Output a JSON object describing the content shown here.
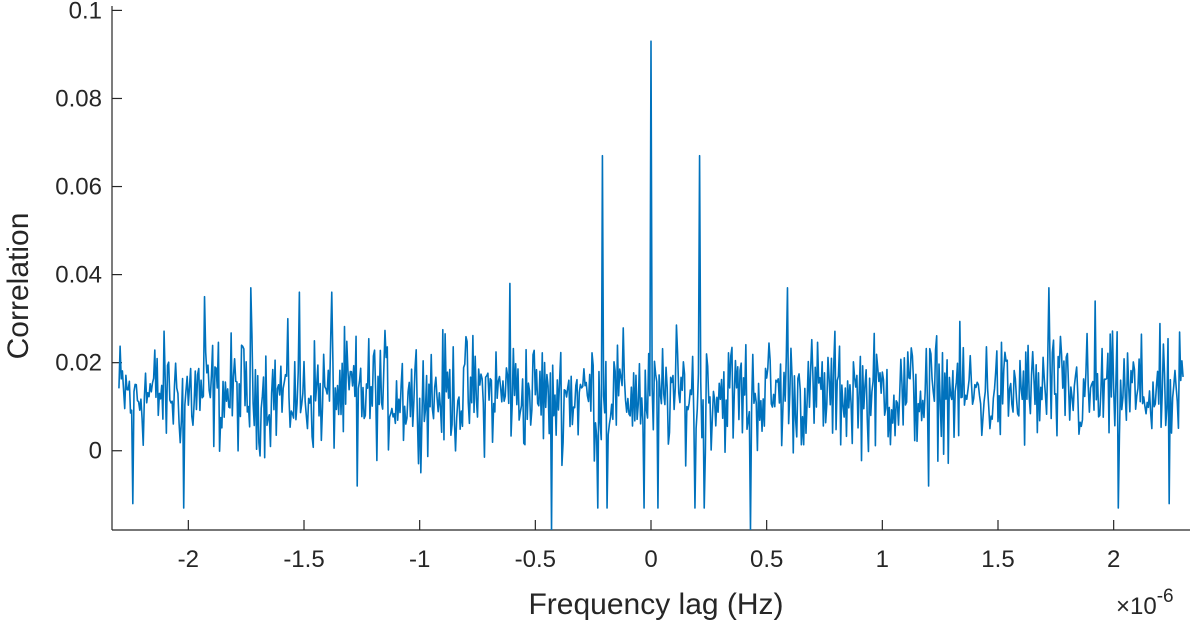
{
  "chart_data": {
    "type": "line",
    "xlabel": "Frequency lag (Hz)",
    "ylabel": "Correlation",
    "x_exponent_label": "×10",
    "x_exponent_power": "-6",
    "xlim": [
      -2.33,
      2.33
    ],
    "ylim": [
      -0.018,
      0.101
    ],
    "x_scale_factor": 1e-06,
    "x_ticks": [
      -2,
      -1.5,
      -1,
      -0.5,
      0,
      0.5,
      1,
      1.5,
      2
    ],
    "x_tick_labels": [
      "-2",
      "-1.5",
      "-1",
      "-0.5",
      "0",
      "0.5",
      "1",
      "1.5",
      "2"
    ],
    "y_ticks": [
      0,
      0.02,
      0.04,
      0.06,
      0.08,
      0.1
    ],
    "y_tick_labels": [
      "0",
      "0.02",
      "0.04",
      "0.06",
      "0.08",
      "0.1"
    ],
    "grid": false,
    "series": [
      {
        "color": "#0072BD",
        "x_range": [
          -2.3,
          2.3
        ],
        "n_points": 921,
        "baseline": 0.013,
        "noise_amplitude": 0.011,
        "peaks": [
          {
            "x": -2.24,
            "y": -0.012
          },
          {
            "x": -2.02,
            "y": -0.013
          },
          {
            "x": -1.93,
            "y": 0.035
          },
          {
            "x": -1.73,
            "y": 0.037
          },
          {
            "x": -1.52,
            "y": 0.036
          },
          {
            "x": -1.38,
            "y": 0.036
          },
          {
            "x": -1.27,
            "y": -0.008
          },
          {
            "x": -0.61,
            "y": 0.038
          },
          {
            "x": -0.43,
            "y": -0.018
          },
          {
            "x": -0.21,
            "y": 0.067
          },
          {
            "x": 0.0,
            "y": 0.093
          },
          {
            "x": 0.21,
            "y": 0.067
          },
          {
            "x": 0.43,
            "y": -0.018
          },
          {
            "x": 0.59,
            "y": 0.037
          },
          {
            "x": 1.2,
            "y": -0.008
          },
          {
            "x": 1.72,
            "y": 0.037
          },
          {
            "x": 1.92,
            "y": 0.034
          },
          {
            "x": 2.02,
            "y": -0.013
          },
          {
            "x": 2.24,
            "y": -0.012
          }
        ]
      }
    ]
  }
}
